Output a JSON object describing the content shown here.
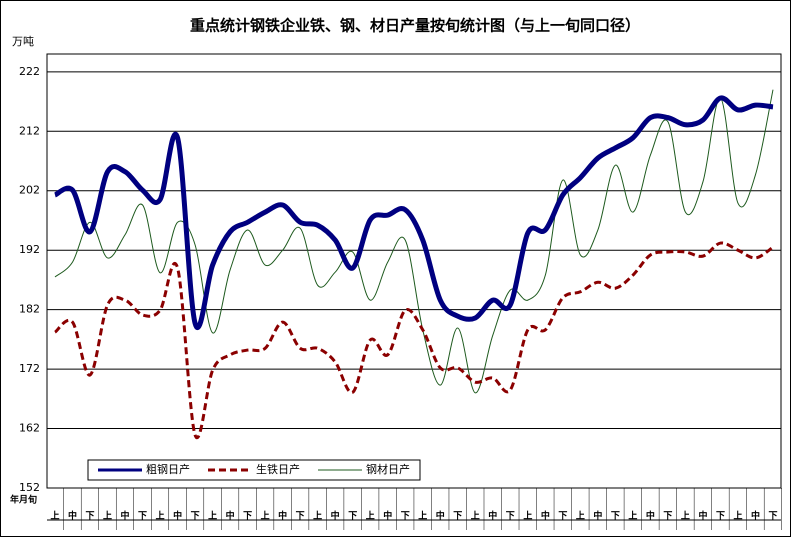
{
  "chart_data": {
    "type": "line",
    "title": "重点统计钢铁企业铁、钢、材日产量按旬统计图（与上一旬同口径）",
    "y_unit": "万吨",
    "x_label": "年月旬",
    "categories": [
      "上",
      "中",
      "下",
      "上",
      "中",
      "下",
      "上",
      "中",
      "下",
      "上",
      "中",
      "下",
      "上",
      "中",
      "下",
      "上",
      "中",
      "下",
      "上",
      "中",
      "下",
      "上",
      "中",
      "下",
      "上",
      "中",
      "下",
      "上",
      "中",
      "下",
      "上",
      "中",
      "下",
      "上",
      "中",
      "下",
      "上",
      "中",
      "下",
      "上",
      "中",
      "下"
    ],
    "ylim": [
      152,
      225
    ],
    "yticks": [
      152,
      162,
      172,
      182,
      192,
      202,
      212,
      222
    ],
    "grid": true,
    "legend": "bottom-left",
    "series": [
      {
        "name": "粗钢日产",
        "color": "#000080",
        "line_style": "solid",
        "line_width": 5,
        "values": [
          201.3,
          202.1,
          195.1,
          205.2,
          205.2,
          202.1,
          200.5,
          210.9,
          179.7,
          189.5,
          195.1,
          196.7,
          198.4,
          199.6,
          196.7,
          196.2,
          193.7,
          189.0,
          197.1,
          197.9,
          198.8,
          193.7,
          183.6,
          180.9,
          180.6,
          183.6,
          182.8,
          194.9,
          195.4,
          201.3,
          204.2,
          207.5,
          209.2,
          210.9,
          214.3,
          214.3,
          213.1,
          213.9,
          217.6,
          215.6,
          216.4,
          216.1
        ]
      },
      {
        "name": "生铁日产",
        "color": "#8b0000",
        "line_style": "dashed",
        "line_width": 3,
        "values": [
          178.2,
          179.9,
          171.0,
          182.8,
          183.6,
          181.1,
          181.9,
          189.0,
          160.9,
          171.8,
          174.4,
          175.2,
          175.5,
          179.9,
          175.5,
          175.5,
          173.2,
          168.1,
          176.9,
          174.4,
          181.9,
          178.6,
          172.2,
          172.2,
          169.8,
          170.5,
          168.5,
          178.6,
          178.6,
          184.0,
          185.0,
          186.6,
          185.6,
          187.8,
          191.2,
          191.7,
          191.7,
          191.0,
          193.2,
          192.0,
          190.7,
          192.5
        ]
      },
      {
        "name": "钢材日产",
        "color": "#1e5a1e",
        "line_style": "solid",
        "line_width": 1,
        "values": [
          187.5,
          190.0,
          196.7,
          190.7,
          194.6,
          199.6,
          188.2,
          196.7,
          192.9,
          178.1,
          188.7,
          195.4,
          189.5,
          192.0,
          195.7,
          186.1,
          188.3,
          191.7,
          183.6,
          190.0,
          193.7,
          178.6,
          169.3,
          178.9,
          168.0,
          177.7,
          185.3,
          183.6,
          187.8,
          203.8,
          191.2,
          195.4,
          206.3,
          198.4,
          208.0,
          213.6,
          198.4,
          203.5,
          217.6,
          199.9,
          204.7,
          219.0
        ]
      }
    ]
  }
}
